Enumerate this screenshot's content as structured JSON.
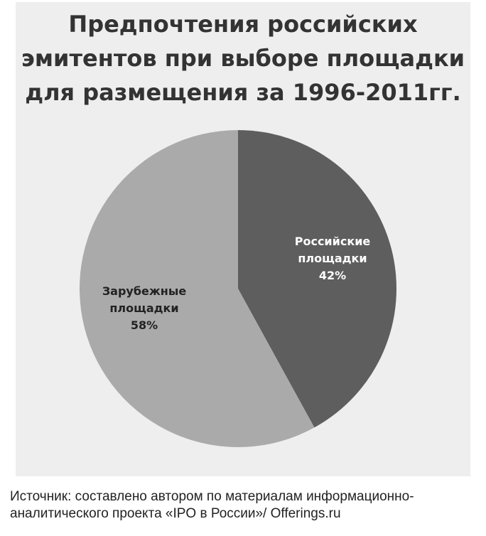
{
  "colors": {
    "background": "#eeeeee",
    "russian_slice": "#5e5e5e",
    "foreign_slice": "#aaaaaa"
  },
  "chart_data": {
    "type": "pie",
    "title": "Предпочтения российских эмитентов при выборе площадки для размещения за 1996-2011гг.",
    "title_lines": [
      "Предпочтения российских",
      "эмитентов при выборе площадки",
      "для размещения за 1996-2011гг."
    ],
    "slices": [
      {
        "label_lines": [
          "Российские",
          "площадки"
        ],
        "value": 42,
        "value_label": "42%",
        "color": "#5e5e5e"
      },
      {
        "label_lines": [
          "Зарубежные",
          "площадки"
        ],
        "value": 58,
        "value_label": "58%",
        "color": "#aaaaaa"
      }
    ],
    "legend": "none"
  },
  "source": {
    "lines": [
      "Источник: составлено автором  по материалам информационно-",
      "аналитического проекта «IPO в России»/ Offerings.ru"
    ]
  }
}
